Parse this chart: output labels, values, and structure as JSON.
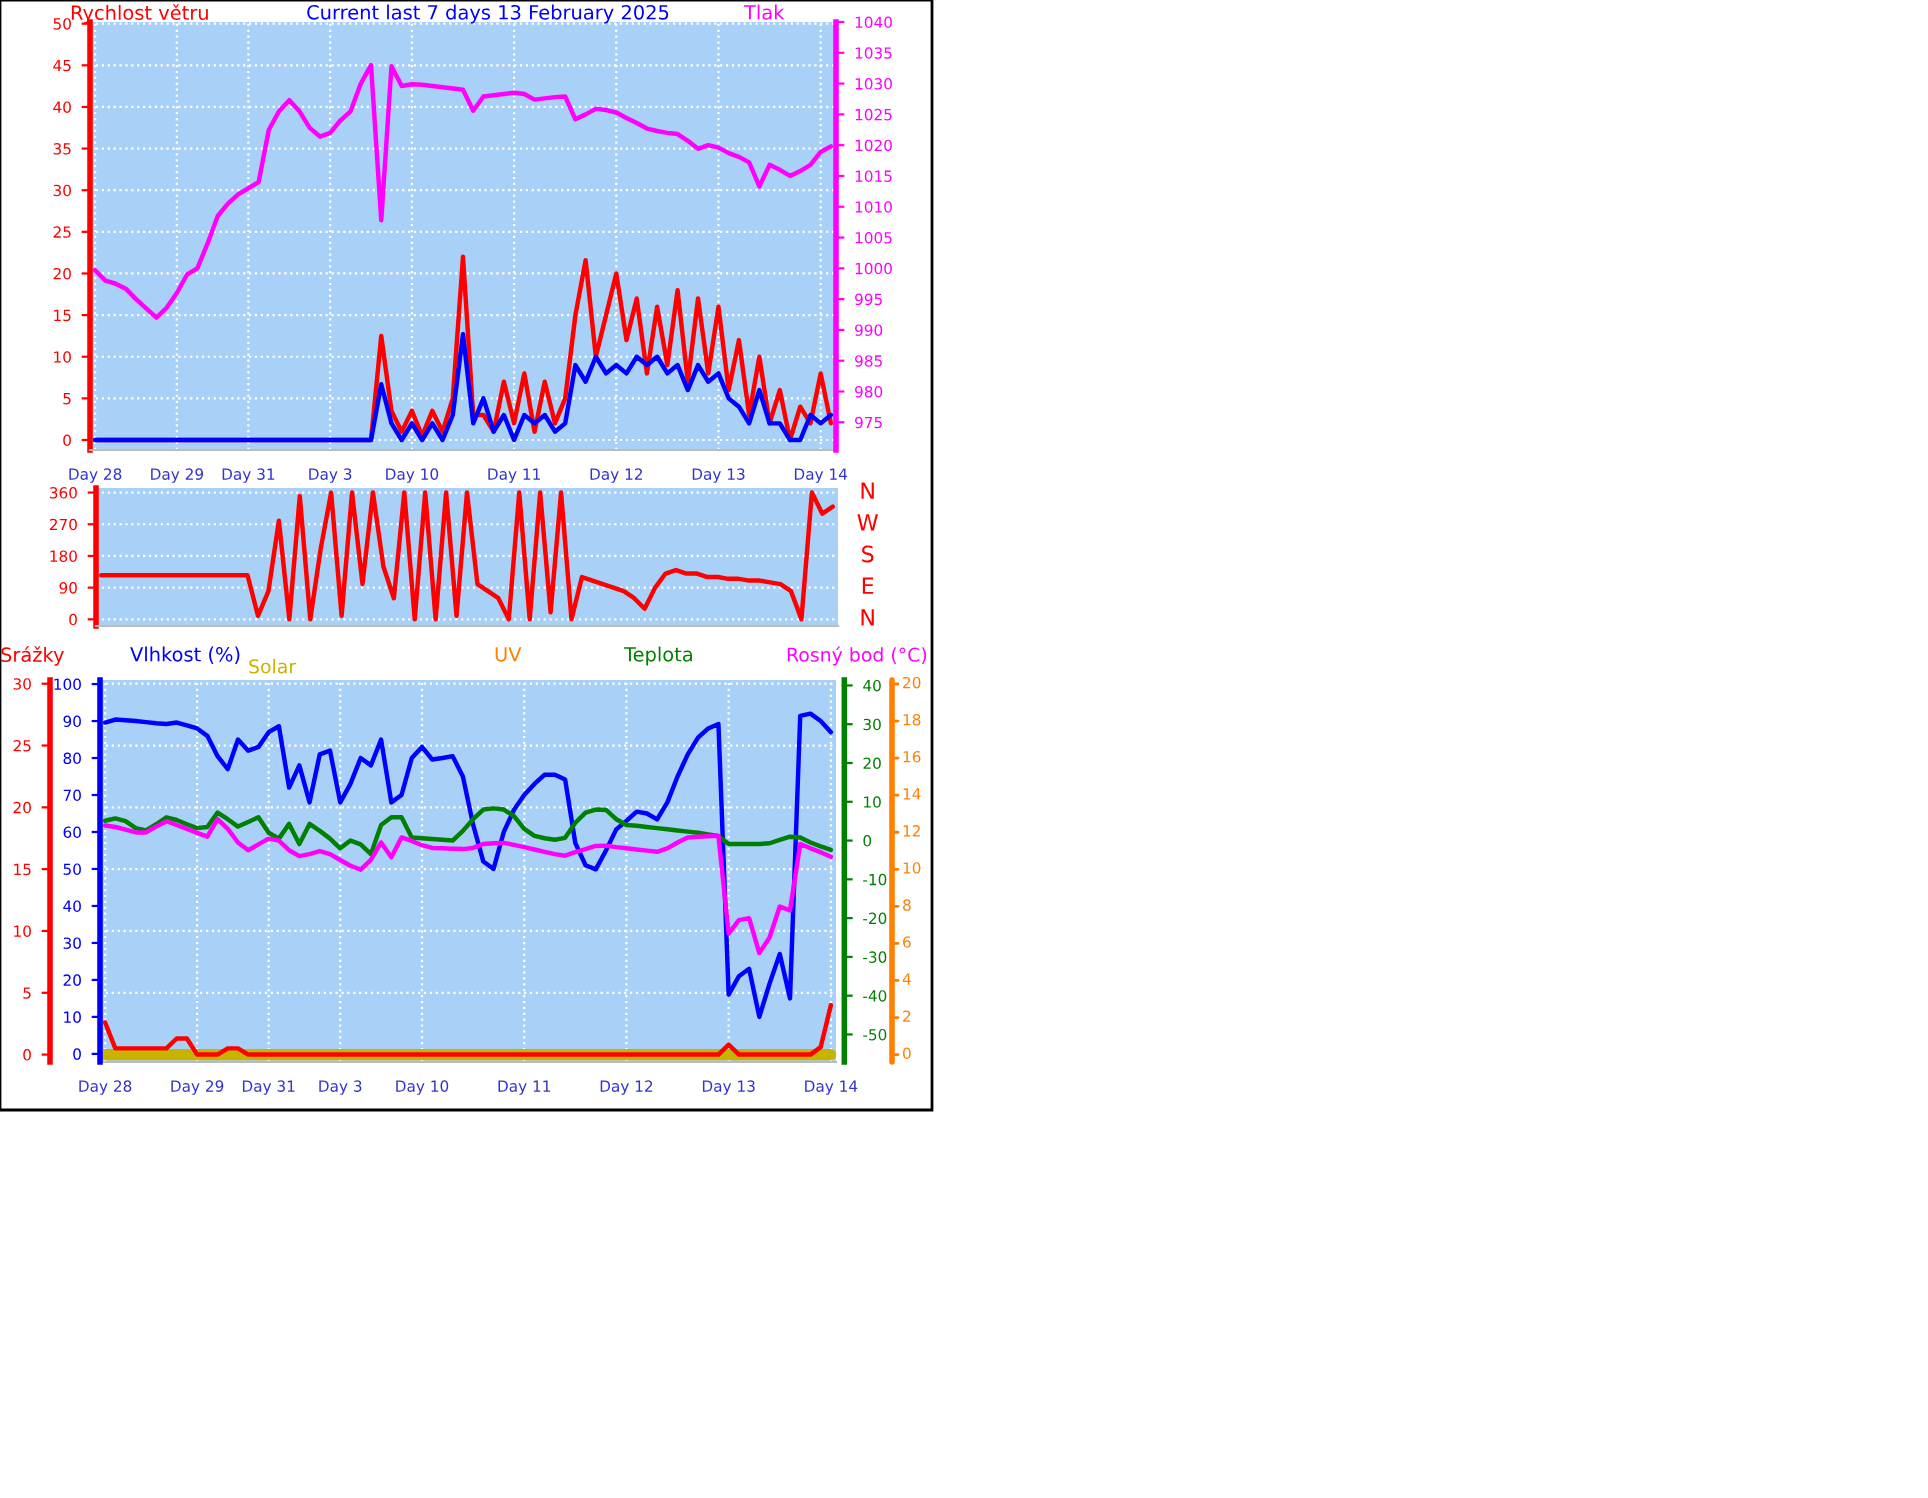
{
  "chart_data": [
    {
      "type": "line",
      "title": "Current last 7 days 13 February 2025",
      "ylabel": "Rychlost větru",
      "y2label": "Tlak",
      "grid": true,
      "categories": [
        "Day 28",
        null,
        null,
        null,
        null,
        null,
        null,
        null,
        "Day 29",
        null,
        null,
        null,
        null,
        null,
        null,
        "Day 31",
        null,
        null,
        null,
        null,
        null,
        null,
        null,
        "Day 3",
        null,
        null,
        null,
        null,
        null,
        null,
        null,
        "Day 10",
        null,
        null,
        null,
        null,
        null,
        null,
        null,
        null,
        null,
        "Day 11",
        null,
        null,
        null,
        null,
        null,
        null,
        null,
        null,
        null,
        "Day 12",
        null,
        null,
        null,
        null,
        null,
        null,
        null,
        null,
        null,
        "Day 13",
        null,
        null,
        null,
        null,
        null,
        null,
        null,
        null,
        null,
        "Day 14",
        null
      ],
      "ylim": [
        -1.2,
        50.2
      ],
      "yticks": [
        0,
        5,
        10,
        15,
        20,
        25,
        30,
        35,
        40,
        45,
        50
      ],
      "y2lim": [
        970.5,
        1040
      ],
      "y2ticks": [
        975,
        980,
        985,
        990,
        995,
        1000,
        1005,
        1010,
        1015,
        1020,
        1025,
        1030,
        1035,
        1040
      ],
      "series": [
        {
          "color": "#ff0000",
          "values": [
            0,
            0,
            0,
            0,
            0,
            0,
            0,
            0,
            0,
            0,
            0,
            0,
            0,
            0,
            0,
            0,
            0,
            0,
            0,
            0,
            0,
            0,
            0,
            0,
            0,
            0,
            0,
            0,
            12.5,
            3.5,
            1,
            3.5,
            0.5,
            3.5,
            1,
            5,
            22,
            3,
            3,
            1,
            7,
            2,
            8,
            1,
            7,
            2,
            5,
            15,
            21.6,
            10,
            15,
            20,
            12,
            17,
            8,
            16,
            9,
            18,
            7,
            17,
            8,
            16,
            6,
            12,
            3,
            10,
            2,
            6,
            0,
            4,
            2,
            8,
            2
          ]
        },
        {
          "color": "#0000ff",
          "values": [
            0,
            0,
            0,
            0,
            0,
            0,
            0,
            0,
            0,
            0,
            0,
            0,
            0,
            0,
            0,
            0,
            0,
            0,
            0,
            0,
            0,
            0,
            0,
            0,
            0,
            0,
            0,
            0,
            6.7,
            2,
            0,
            2,
            0,
            2,
            0,
            3,
            12.7,
            2,
            5,
            1,
            3,
            0,
            3,
            2,
            3,
            1,
            2,
            9,
            7,
            10,
            8,
            9,
            8,
            10,
            9,
            10,
            8,
            9,
            6,
            9,
            7,
            8,
            5,
            4,
            2,
            6,
            2,
            2,
            0,
            0,
            3,
            2,
            3
          ]
        },
        {
          "color": "#ff00ff",
          "axis": "y2",
          "values": [
            999.7,
            998,
            997.5,
            996.7,
            995,
            993.5,
            992,
            993.6,
            996,
            999,
            1000,
            1004,
            1008.5,
            1010.5,
            1012,
            1013,
            1014,
            1022.5,
            1025.5,
            1027.3,
            1025.5,
            1022.8,
            1021.4,
            1022,
            1024,
            1025.5,
            1030,
            1033,
            1007.8,
            1032.8,
            1029.6,
            1029.9,
            1029.8,
            1029.6,
            1029.4,
            1029.2,
            1029,
            1025.6,
            1027.9,
            1028.1,
            1028.3,
            1028.5,
            1028.3,
            1027.4,
            1027.6,
            1027.8,
            1027.9,
            1024.2,
            1025,
            1025.9,
            1025.7,
            1025.3,
            1024.4,
            1023.6,
            1022.7,
            1022.3,
            1022,
            1021.8,
            1020.7,
            1019.4,
            1020,
            1019.6,
            1018.7,
            1018.1,
            1017.2,
            1013.3,
            1016.8,
            1016,
            1015,
            1015.8,
            1016.8,
            1018.9,
            1019.8
          ]
        }
      ]
    },
    {
      "type": "line",
      "grid": true,
      "tick_labels": "y",
      "categories": [
        null,
        null,
        null,
        null,
        null,
        null,
        null,
        null,
        null,
        null,
        null,
        null,
        null,
        null,
        null,
        null,
        null,
        null,
        null,
        null,
        null,
        null,
        null,
        null,
        null,
        null,
        null,
        null,
        null,
        null,
        null,
        null,
        null,
        null,
        null,
        null,
        null,
        null,
        null,
        null,
        null,
        null,
        null,
        null,
        null,
        null,
        null,
        null,
        null,
        null,
        null,
        null,
        null,
        null,
        null,
        null,
        null,
        null,
        null,
        null,
        null,
        null,
        null,
        null,
        null,
        null,
        null,
        null,
        null,
        null,
        null
      ],
      "ylim": [
        -19,
        373
      ],
      "yticks": [
        0,
        90,
        180,
        270,
        360
      ],
      "annotations": [
        "N",
        "W",
        "S",
        "E",
        "N"
      ],
      "series": [
        {
          "color": "#ff0000",
          "values": [
            125,
            125,
            125,
            125,
            125,
            125,
            125,
            125,
            125,
            125,
            125,
            125,
            125,
            125,
            125,
            10,
            80,
            280,
            0,
            350,
            0,
            200,
            360,
            10,
            360,
            100,
            360,
            150,
            60,
            360,
            0,
            360,
            0,
            360,
            10,
            360,
            100,
            80,
            60,
            0,
            360,
            0,
            360,
            20,
            360,
            0,
            120,
            110,
            100,
            90,
            80,
            60,
            30,
            90,
            130,
            140,
            130,
            130,
            120,
            120,
            115,
            115,
            110,
            110,
            105,
            100,
            80,
            0,
            360,
            300,
            320
          ]
        }
      ]
    },
    {
      "type": "line",
      "grid": true,
      "ylabel": "Srážky",
      "y2label": "Vlhkost (%)",
      "y3label": "Teplota",
      "annotations": [
        "UV",
        "20",
        "18",
        "16",
        "14",
        "12",
        "10",
        "8",
        "6",
        "4",
        "2",
        "0"
      ],
      "categories": [
        "Day 28",
        null,
        null,
        null,
        null,
        null,
        null,
        null,
        null,
        "Day 29",
        null,
        null,
        null,
        null,
        null,
        null,
        "Day 31",
        null,
        null,
        null,
        null,
        null,
        null,
        "Day 3",
        null,
        null,
        null,
        null,
        null,
        null,
        null,
        "Day 10",
        null,
        null,
        null,
        null,
        null,
        null,
        null,
        null,
        null,
        "Day 11",
        null,
        null,
        null,
        null,
        null,
        null,
        null,
        null,
        null,
        "Day 12",
        null,
        null,
        null,
        null,
        null,
        null,
        null,
        null,
        null,
        "Day 13",
        null,
        null,
        null,
        null,
        null,
        null,
        null,
        null,
        null,
        "Day 14"
      ],
      "ylim": [
        -0.6,
        30.3
      ],
      "yticks": [
        0,
        5,
        10,
        15,
        20,
        25,
        30
      ],
      "y2lim": [
        -2.2,
        101.1
      ],
      "y2ticks": [
        0,
        10,
        20,
        30,
        40,
        50,
        60,
        70,
        80,
        90,
        100
      ],
      "y3lim": [
        -57.1,
        41.4
      ],
      "y3ticks": [
        -50,
        -40,
        -30,
        -20,
        -10,
        0,
        10,
        20,
        30,
        40
      ],
      "series": [
        {
          "color": "#ff0000",
          "values": [
            2.6,
            0.5,
            0.5,
            0.5,
            0.5,
            0.5,
            0.5,
            1.3,
            1.3,
            0,
            0,
            0,
            0.5,
            0.5,
            0,
            0,
            0,
            0,
            0,
            0,
            0,
            0,
            0,
            0,
            0,
            0,
            0,
            0,
            0,
            0,
            0,
            0,
            0,
            0,
            0,
            0,
            0,
            0,
            0,
            0,
            0,
            0,
            0,
            0,
            0,
            0,
            0,
            0,
            0,
            0,
            0,
            0,
            0,
            0,
            0,
            0,
            0,
            0,
            0,
            0,
            0,
            0.8,
            0,
            0,
            0,
            0,
            0,
            0,
            0,
            0,
            0.6,
            4.0
          ]
        },
        {
          "color": "#0000ff",
          "axis": "y2",
          "values": [
            89.6,
            90.4,
            90.2,
            90,
            89.7,
            89.4,
            89.2,
            89.6,
            88.8,
            88,
            86,
            80.5,
            77,
            85,
            82,
            83,
            87,
            88.6,
            72,
            78,
            68,
            81,
            82,
            68,
            73,
            80,
            78,
            85,
            68,
            70,
            80,
            83,
            79.6,
            80,
            80.5,
            75,
            62,
            52,
            50,
            60,
            66,
            70,
            73,
            75.5,
            75.5,
            74.2,
            57,
            51,
            49.9,
            55,
            60.7,
            63,
            65.5,
            65,
            63.4,
            68,
            75,
            81,
            85.5,
            88,
            89.2,
            16,
            21,
            23,
            10,
            19,
            27,
            15,
            91.4,
            92,
            90,
            87
          ]
        },
        {
          "color": "#008000",
          "axis": "y3",
          "values": [
            5.1,
            5.7,
            5.0,
            3.2,
            2.6,
            4.2,
            6,
            5.3,
            4.2,
            3.2,
            3.5,
            7.2,
            5.5,
            3.6,
            4.8,
            6,
            2,
            0.5,
            4.3,
            -0.9,
            4.3,
            2.5,
            0.5,
            -2,
            0,
            -1,
            -3.5,
            4,
            6,
            6,
            0.8,
            0.6,
            0.4,
            0.2,
            0,
            2.5,
            5.5,
            8,
            8.3,
            8,
            6.3,
            3,
            1.2,
            0.6,
            0.2,
            0.7,
            4.6,
            7.2,
            8,
            7.9,
            5.5,
            4,
            3.8,
            3.5,
            3.2,
            2.9,
            2.6,
            2.3,
            2,
            1.6,
            1.2,
            -0.9,
            -0.9,
            -0.9,
            -0.9,
            -0.7,
            0.2,
            1,
            0.8,
            -0.5,
            -1.5,
            -2.4
          ]
        },
        {
          "name": "Rosný bod (°C)",
          "color": "#ff00ff",
          "axis": "y3",
          "values": [
            3.9,
            3.5,
            2.8,
            2.1,
            2.1,
            3.6,
            5,
            4,
            3,
            2,
            1,
            5.5,
            3,
            -0.5,
            -2.5,
            -1,
            0.5,
            0,
            -2.5,
            -4,
            -3.5,
            -2.7,
            -3.5,
            -5,
            -6.5,
            -7.5,
            -5,
            -0.5,
            -4.3,
            0.8,
            -0.1,
            -1.2,
            -1.9,
            -2,
            -2.1,
            -2.2,
            -1.9,
            -0.9,
            -0.7,
            -0.6,
            -1.1,
            -1.7,
            -2.3,
            -2.9,
            -3.5,
            -3.9,
            -3,
            -2.2,
            -1.4,
            -1.3,
            -1.7,
            -2,
            -2.3,
            -2.6,
            -2.9,
            -2,
            -0.5,
            0.8,
            1,
            1.1,
            1.2,
            -24,
            -20.5,
            -20,
            -29,
            -25,
            -17,
            -18,
            -0.9,
            -2,
            -3,
            -4.2
          ]
        },
        {
          "name": "Solar",
          "color": "#c8b400",
          "values": [
            0,
            0,
            0,
            0,
            0,
            0,
            0,
            0,
            0,
            0,
            0,
            0,
            0,
            0,
            0,
            0,
            0,
            0,
            0,
            0,
            0,
            0,
            0,
            0,
            0,
            0,
            0,
            0,
            0,
            0,
            0,
            0,
            0,
            0,
            0,
            0,
            0,
            0,
            0,
            0,
            0,
            0,
            0,
            0,
            0,
            0,
            0,
            0,
            0,
            0,
            0,
            0,
            0,
            0,
            0,
            0,
            0,
            0,
            0,
            0,
            0,
            0,
            0,
            0,
            0,
            0,
            0,
            0,
            0,
            0,
            0,
            0
          ]
        }
      ]
    }
  ]
}
